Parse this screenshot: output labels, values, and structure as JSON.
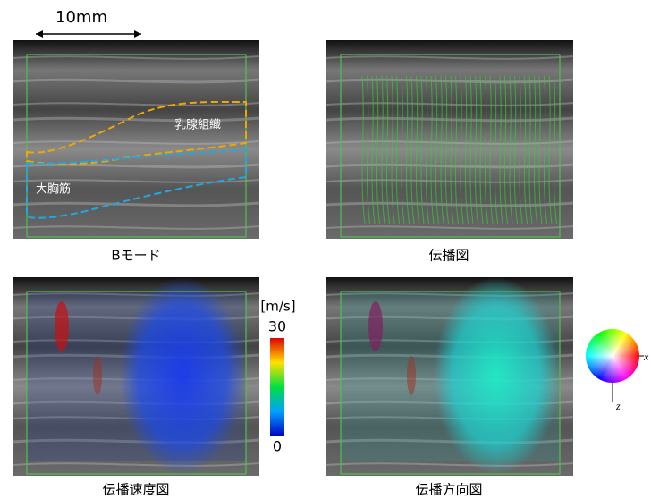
{
  "scale_bar": "10mm",
  "panels": [
    {
      "caption": "Bモード",
      "labels": [
        "乳腺組織",
        "大胸筋"
      ]
    },
    {
      "caption": "伝播図"
    },
    {
      "caption": "伝播速度図"
    },
    {
      "caption": "伝播方向図"
    }
  ],
  "colorbar": {
    "unit": "[m/s]",
    "ticks": [
      0,
      30
    ]
  },
  "direction_axes": [
    "x",
    "z"
  ]
}
